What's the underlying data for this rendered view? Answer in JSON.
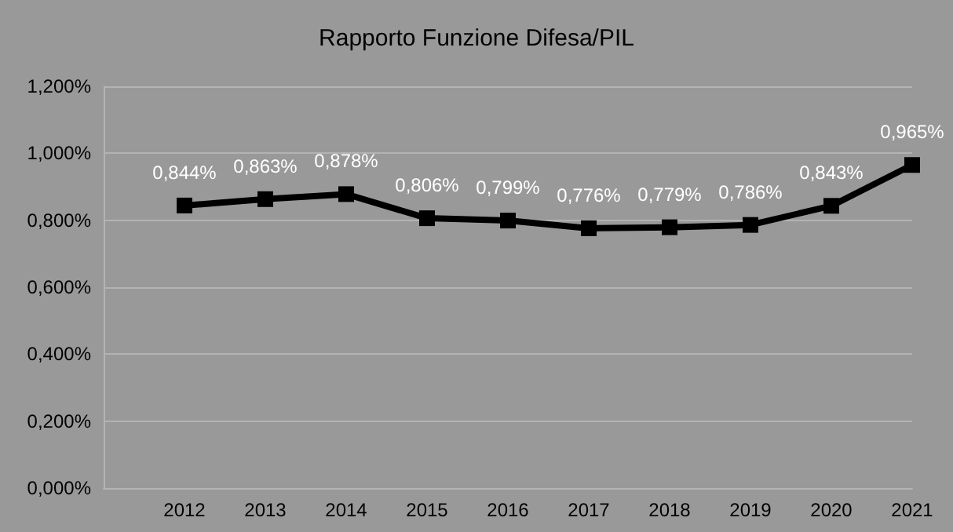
{
  "chart_data": {
    "type": "line",
    "title": "Rapporto Funzione Difesa/PIL",
    "categories": [
      null,
      "2012",
      "2013",
      "2014",
      "2015",
      "2016",
      "2017",
      "2018",
      "2019",
      "2020",
      "2021"
    ],
    "series": [
      {
        "color": "#000000",
        "values": [
          null,
          0.844,
          0.863,
          0.878,
          0.806,
          0.799,
          0.776,
          0.779,
          0.786,
          0.843,
          0.965
        ],
        "value_labels": [
          null,
          "0,844%",
          "0,863%",
          "0,878%",
          "0,806%",
          "0,799%",
          "0,776%",
          "0,779%",
          "0,786%",
          "0,843%",
          "0,965%"
        ]
      }
    ],
    "ylim": [
      0,
      1.2
    ],
    "yticks": [
      {
        "value": 0,
        "label": "0,000%"
      },
      {
        "value": 0.2,
        "label": "0,200%"
      },
      {
        "value": 0.4,
        "label": "0,400%"
      },
      {
        "value": 0.6,
        "label": "0,600%"
      },
      {
        "value": 0.8,
        "label": "0,800%"
      },
      {
        "value": 1,
        "label": "1,000%"
      },
      {
        "value": 1.2,
        "label": "1,200%"
      }
    ],
    "grid": "y",
    "marker": "square",
    "line_style": "solid"
  }
}
